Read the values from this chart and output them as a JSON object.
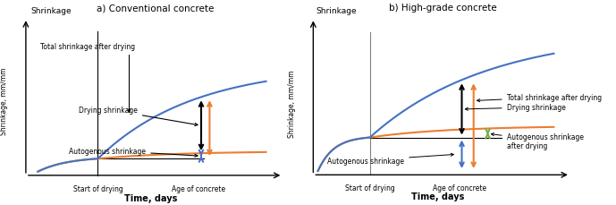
{
  "panel_a_title": "a) Conventional concrete",
  "panel_b_title": "b) High-grade concrete",
  "xlabel": "Time, days",
  "ylabel": "Shrinkage, mm/mm",
  "y_label_top": "Shrinkage",
  "x_label_start": "Start of drying",
  "x_label_age": "Age of concrete",
  "blue_color": "#4472C4",
  "orange_color": "#ED7D31",
  "green_color": "#70AD47",
  "black_color": "#000000",
  "gray_color": "#808080",
  "bg_color": "#FFFFFF"
}
